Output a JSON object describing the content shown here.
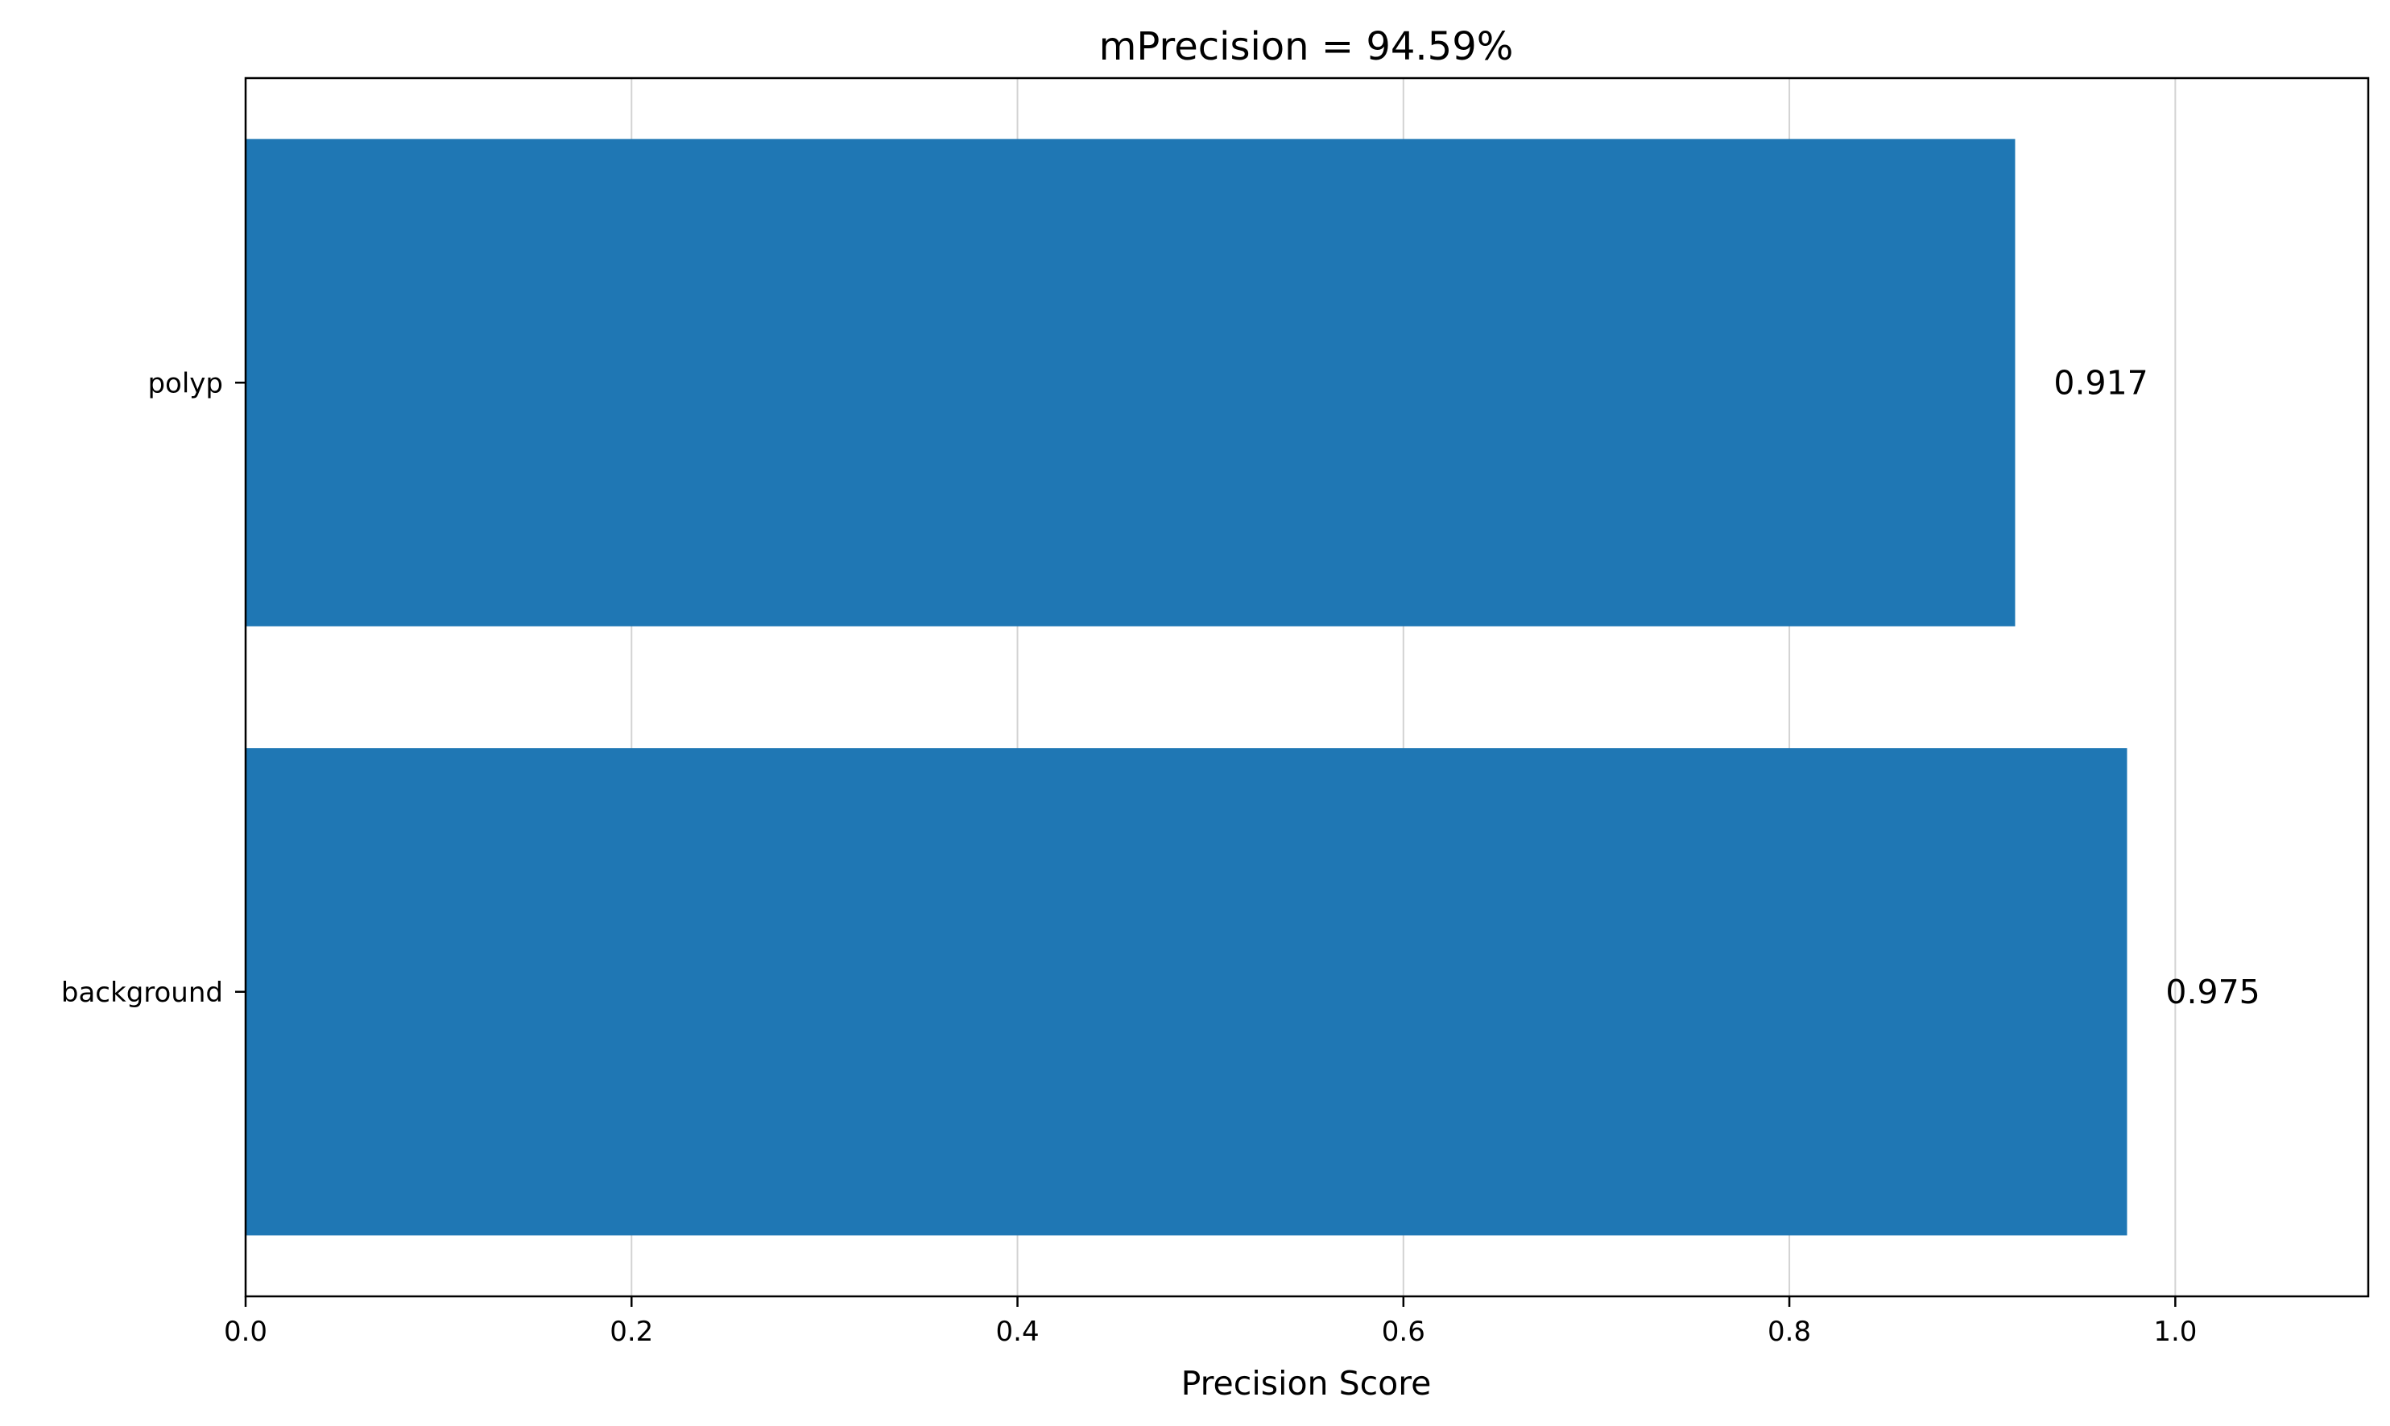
{
  "chart_data": {
    "type": "bar",
    "orientation": "horizontal",
    "title": "mPrecision = 94.59%",
    "xlabel": "Precision Score",
    "ylabel": "",
    "categories": [
      "background",
      "polyp"
    ],
    "values": [
      0.975,
      0.917
    ],
    "value_labels": [
      "0.975",
      "0.917"
    ],
    "xlim": [
      0,
      1.1
    ],
    "xticks": [
      0.0,
      0.2,
      0.4,
      0.6,
      0.8,
      1.0
    ],
    "xtick_labels": [
      "0.0",
      "0.2",
      "0.4",
      "0.6",
      "0.8",
      "1.0"
    ],
    "grid": "x",
    "legend": "none",
    "bar_color": "#1f77b4",
    "grid_color": "#d3d3d3"
  }
}
